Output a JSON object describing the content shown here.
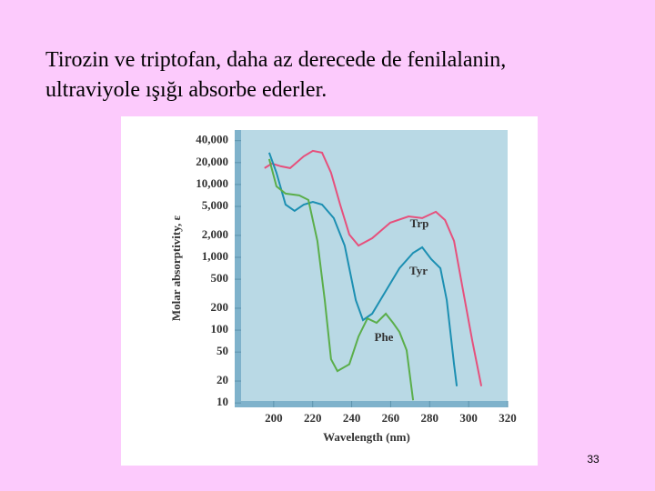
{
  "slide": {
    "title_lines": [
      "Tirozin ve triptofan, daha az derecede de fenilalanin,",
      "ultraviyole ışığı absorbe ederler."
    ],
    "page_number": "33"
  },
  "chart_data": {
    "type": "line",
    "log_y": true,
    "xlabel": "Wavelength (nm)",
    "ylabel": "Molar absorptivity, ε",
    "xlim": [
      180,
      320
    ],
    "xticks": [
      200,
      220,
      240,
      260,
      280,
      300,
      320
    ],
    "ylim": [
      8.7,
      56000
    ],
    "yticks": [
      10,
      20,
      50,
      100,
      200,
      500,
      {
        "value": 1000,
        "label": "1,000"
      },
      {
        "value": 2000,
        "label": "2,000"
      },
      {
        "value": 5000,
        "label": "5,000"
      },
      {
        "value": 10000,
        "label": "10,000"
      },
      {
        "value": 20000,
        "label": "20,000"
      },
      {
        "value": 40000,
        "label": "40,000"
      }
    ],
    "series": [
      {
        "name": "Trp",
        "color": "#e6507c",
        "x": [
          195.3,
          199.1,
          203.7,
          208.4,
          215.4,
          220.1,
          224.8,
          229.4,
          234.1,
          238.8,
          243.5,
          250.5,
          259.8,
          269.2,
          276.2,
          283.2,
          287.9,
          292.5,
          297.2,
          301.9,
          306.5
        ],
        "values": [
          16800,
          19400,
          17800,
          16800,
          24400,
          29000,
          27400,
          14500,
          5300,
          2050,
          1450,
          1830,
          2990,
          3650,
          3450,
          4220,
          3250,
          1680,
          345,
          71,
          17
        ]
      },
      {
        "name": "Tyr",
        "color": "#1c8fb2",
        "x": [
          197.7,
          201.4,
          206.1,
          210.7,
          215.4,
          220.1,
          224.8,
          230.8,
          236.4,
          242.1,
          245.8,
          250.5,
          257.5,
          264.5,
          271.5,
          276.2,
          280.8,
          285.5,
          288.8,
          292.5,
          293.9
        ],
        "values": [
          27400,
          14500,
          5300,
          4350,
          5300,
          5770,
          5300,
          3450,
          1450,
          258,
          137,
          168,
          345,
          708,
          1150,
          1370,
          944,
          708,
          258,
          34,
          17
        ]
      },
      {
        "name": "Phe",
        "color": "#5aae4a",
        "x": [
          197.7,
          201.4,
          206.1,
          213.1,
          217.8,
          222.4,
          226.2,
          229.4,
          232.7,
          238.8,
          243.5,
          248.1,
          252.8,
          257.5,
          261.2,
          264.5,
          268.2,
          271.5
        ],
        "values": [
          22400,
          9440,
          7500,
          7080,
          6130,
          1680,
          258,
          39.8,
          27.4,
          34,
          81.8,
          145,
          126,
          168,
          126,
          94.4,
          53,
          10.9
        ]
      }
    ]
  }
}
